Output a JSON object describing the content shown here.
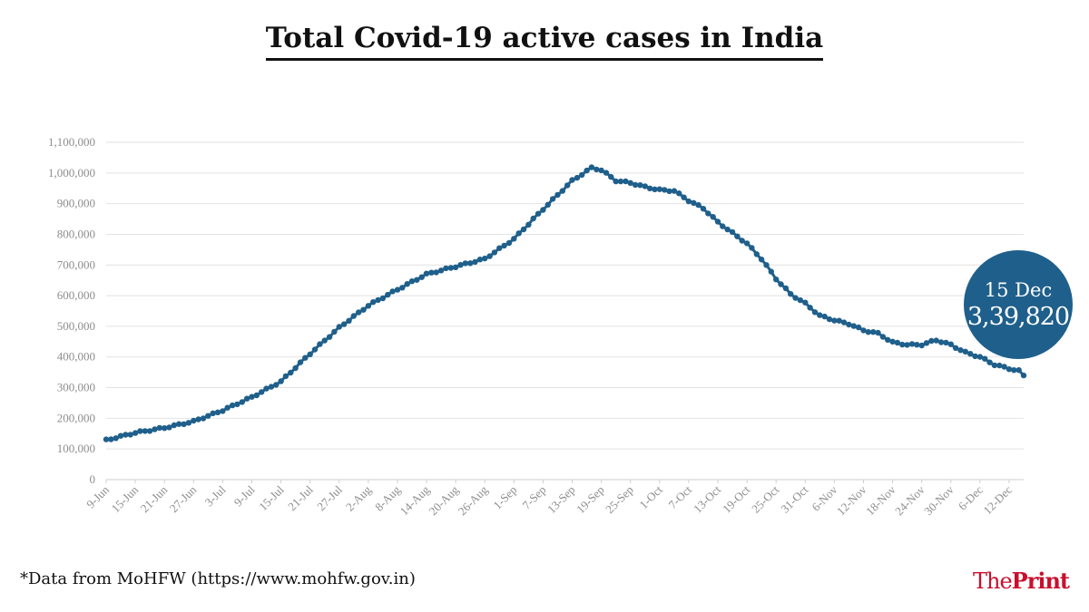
{
  "title": "Total Covid-19 active cases in India",
  "footnote": "*Data from MoHFW (https://www.mohfw.gov.in)",
  "brand": {
    "prefix": "The",
    "suffix": "Print"
  },
  "colors": {
    "series": "#1f5f8b",
    "bubble": "#1f5f8b",
    "grid": "#e2e2e2",
    "tick": "#8e8e8e",
    "brand": "#c8102e"
  },
  "callout": {
    "date": "15 Dec",
    "value": "3,39,820"
  },
  "chart_data": {
    "type": "line",
    "title": "Total Covid-19 active cases in India",
    "xlabel": "",
    "ylabel": "",
    "ylim": [
      0,
      1100000
    ],
    "y_ticks": [
      0,
      100000,
      200000,
      300000,
      400000,
      500000,
      600000,
      700000,
      800000,
      900000,
      1000000,
      1100000
    ],
    "y_tick_labels": [
      "0",
      "100,000",
      "200,000",
      "300,000",
      "400,000",
      "500,000",
      "600,000",
      "700,000",
      "800,000",
      "900,000",
      "1,000,000",
      "1,100,000"
    ],
    "x_start": "9-Jun",
    "x_end": "15-Dec",
    "x_tick_labels": [
      "9-Jun",
      "15-Jun",
      "21-Jun",
      "27-Jun",
      "3-Jul",
      "9-Jul",
      "15-Jul",
      "21-Jul",
      "27-Jul",
      "2-Aug",
      "8-Aug",
      "14-Aug",
      "20-Aug",
      "26-Aug",
      "1-Sep",
      "7-Sep",
      "13-Sep",
      "19-Sep",
      "25-Sep",
      "1-Oct",
      "7-Oct",
      "13-Oct",
      "19-Oct",
      "25-Oct",
      "31-Oct",
      "6-Nov",
      "12-Nov",
      "18-Nov",
      "24-Nov",
      "30-Nov",
      "6-Dec",
      "12-Dec"
    ],
    "grid": true,
    "legend": "none",
    "series": [
      {
        "points": [
          [
            "9-Jun",
            129000
          ],
          [
            "15-Jun",
            153000
          ],
          [
            "21-Jun",
            169000
          ],
          [
            "27-Jun",
            190000
          ],
          [
            "3-Jul",
            226000
          ],
          [
            "9-Jul",
            269000
          ],
          [
            "15-Jul",
            320000
          ],
          [
            "21-Jul",
            411000
          ],
          [
            "27-Jul",
            496000
          ],
          [
            "2-Aug",
            568000
          ],
          [
            "8-Aug",
            620000
          ],
          [
            "14-Aug",
            670000
          ],
          [
            "20-Aug",
            695000
          ],
          [
            "26-Aug",
            720000
          ],
          [
            "1-Sep",
            785000
          ],
          [
            "7-Sep",
            882000
          ],
          [
            "13-Sep",
            975000
          ],
          [
            "17-Sep",
            1017000
          ],
          [
            "19-Sep",
            1010000
          ],
          [
            "22-Sep",
            975000
          ],
          [
            "25-Sep",
            968000
          ],
          [
            "28-Sep",
            955000
          ],
          [
            "1-Oct",
            945000
          ],
          [
            "4-Oct",
            942000
          ],
          [
            "7-Oct",
            910000
          ],
          [
            "10-Oct",
            885000
          ],
          [
            "13-Oct",
            840000
          ],
          [
            "16-Oct",
            805000
          ],
          [
            "19-Oct",
            770000
          ],
          [
            "22-Oct",
            720000
          ],
          [
            "25-Oct",
            655000
          ],
          [
            "28-Oct",
            605000
          ],
          [
            "31-Oct",
            575000
          ],
          [
            "3-Nov",
            535000
          ],
          [
            "6-Nov",
            520000
          ],
          [
            "9-Nov",
            508000
          ],
          [
            "12-Nov",
            487000
          ],
          [
            "15-Nov",
            477000
          ],
          [
            "18-Nov",
            448000
          ],
          [
            "21-Nov",
            440000
          ],
          [
            "24-Nov",
            440000
          ],
          [
            "27-Nov",
            455000
          ],
          [
            "30-Nov",
            440000
          ],
          [
            "3-Dec",
            415000
          ],
          [
            "6-Dec",
            400000
          ],
          [
            "9-Dec",
            375000
          ],
          [
            "12-Dec",
            362000
          ],
          [
            "14-Dec",
            355000
          ],
          [
            "15-Dec",
            339820
          ]
        ]
      }
    ]
  }
}
